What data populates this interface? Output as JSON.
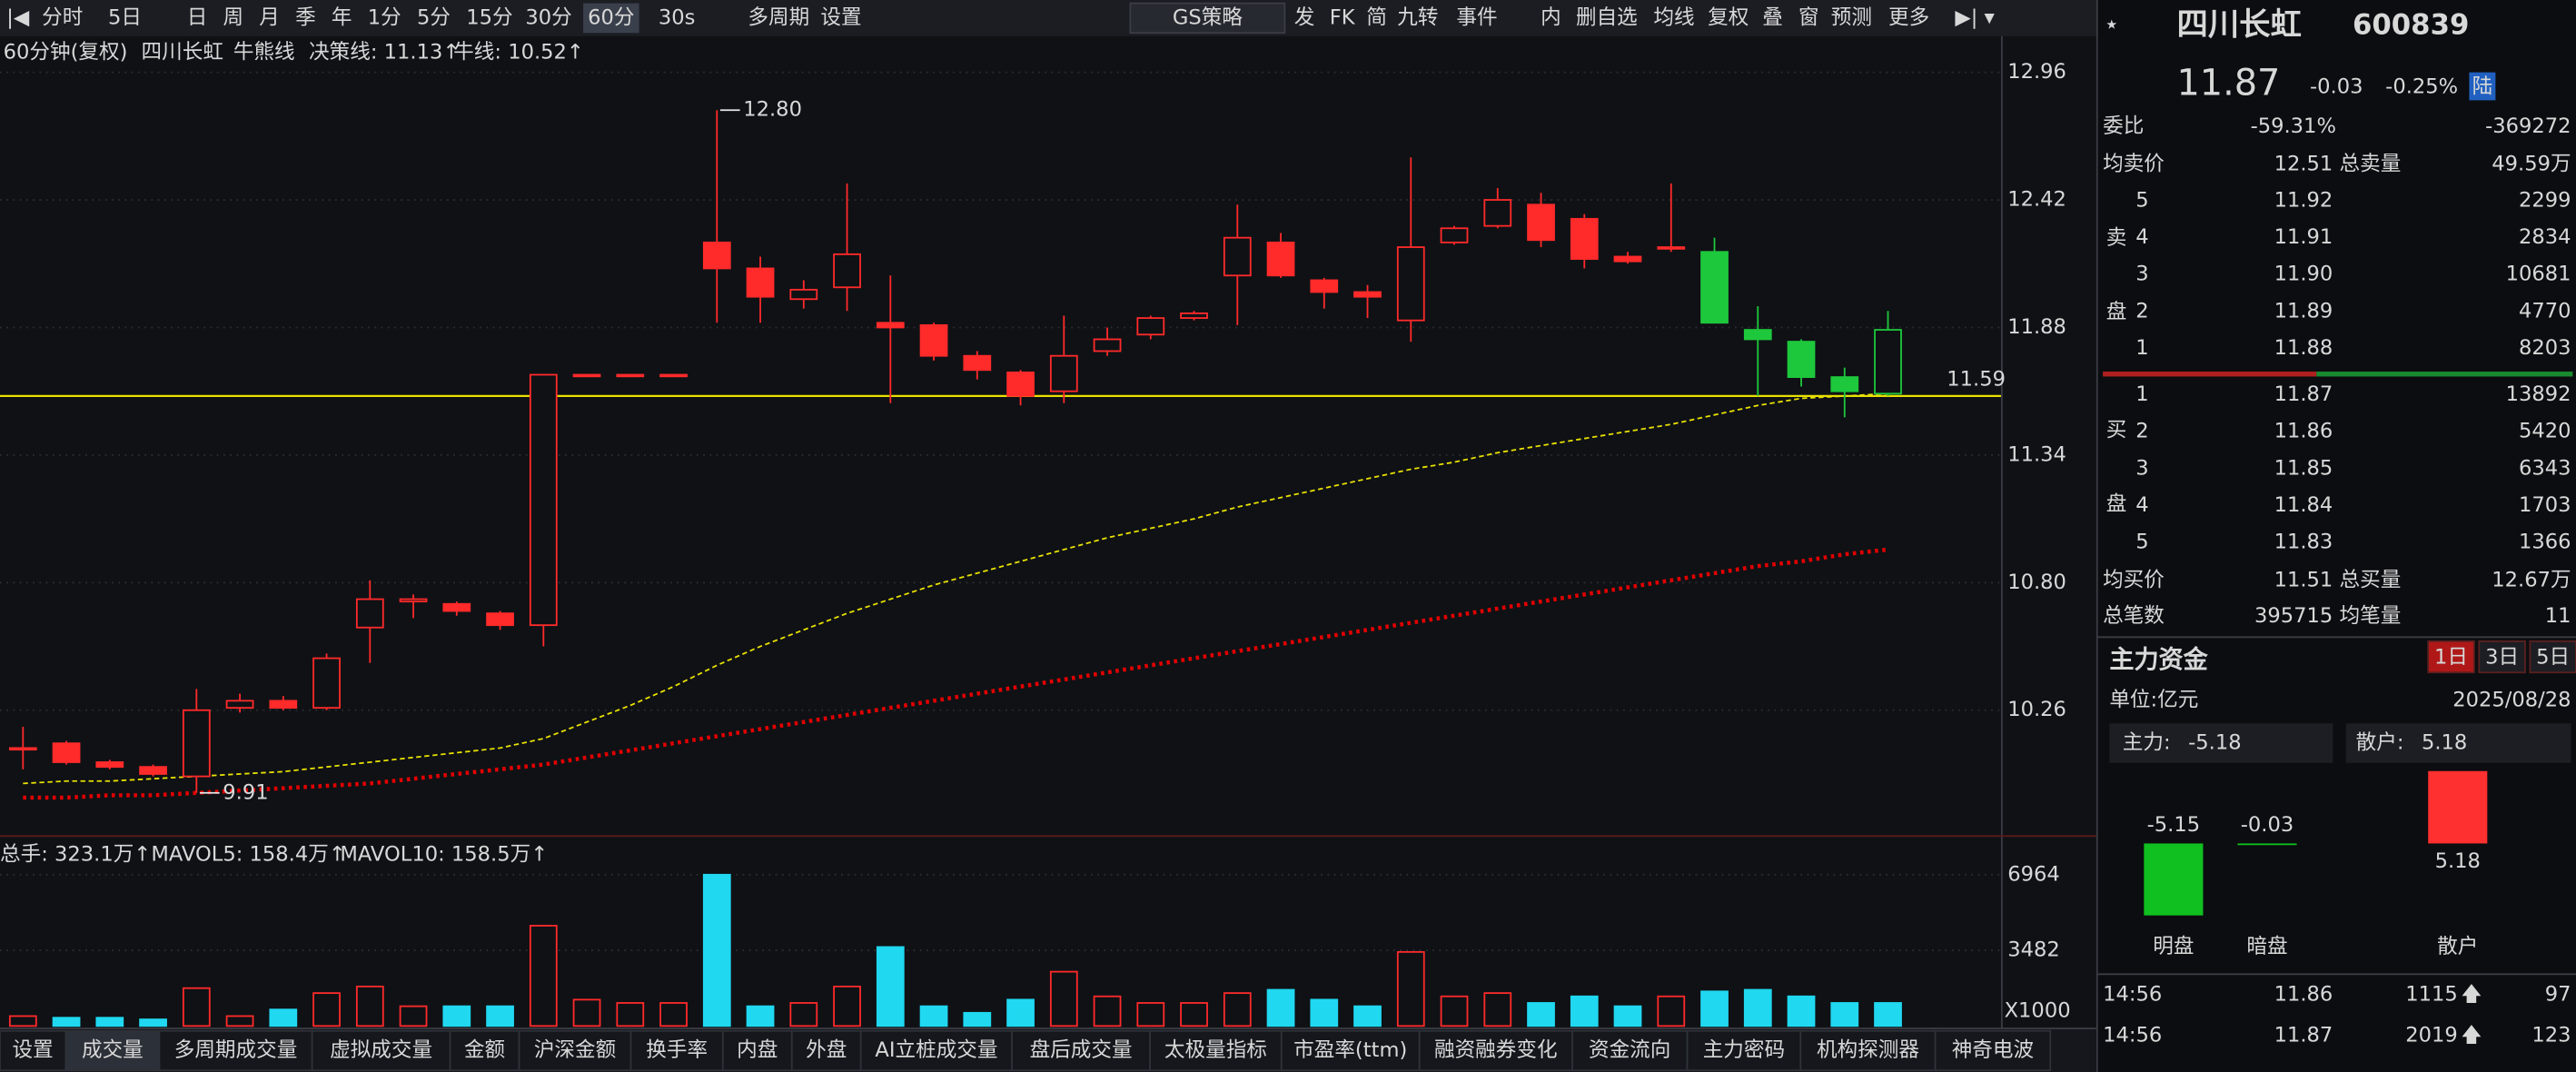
{
  "toolbar": {
    "periods": [
      "分时",
      "5日",
      "日",
      "周",
      "月",
      "季",
      "年",
      "1分",
      "5分",
      "15分",
      "30分",
      "60分",
      "30s",
      "多周期",
      "设置"
    ],
    "strategy": "GS策略",
    "tools": [
      "发",
      "FK",
      "简",
      "九转",
      "事件",
      "内",
      "删自选",
      "均线",
      "复权",
      "叠",
      "窗",
      "预测",
      "更多"
    ]
  },
  "chart": {
    "period": "60分钟(复权)",
    "name": "四川长虹",
    "indicator": "牛熊线",
    "decision": "决策线: 11.13↑",
    "bull": "牛线: 10.52↑",
    "ylim": [
      9.76,
      13.04
    ],
    "yticks": [
      12.96,
      12.42,
      11.88,
      11.34,
      {
        "value": 10.8,
        "label": "10.80"
      },
      10.26
    ],
    "open": [
      10.1,
      10.12,
      10.04,
      10.02,
      9.98,
      10.27,
      10.3,
      10.27,
      10.61,
      10.72,
      10.71,
      10.67,
      10.62,
      11.68,
      11.68,
      11.68,
      12.24,
      12.13,
      12.0,
      12.05,
      11.9,
      11.89,
      11.76,
      11.69,
      11.61,
      11.78,
      11.85,
      11.92,
      12.1,
      12.24,
      12.08,
      12.03,
      11.91,
      12.24,
      12.31,
      12.4,
      12.34,
      12.18,
      12.22,
      12.2,
      11.87,
      11.82,
      11.67,
      11.6
    ],
    "high": [
      10.19,
      10.13,
      10.05,
      10.03,
      10.35,
      10.33,
      10.32,
      10.5,
      10.81,
      10.75,
      10.72,
      10.68,
      11.68,
      11.68,
      11.68,
      11.68,
      12.8,
      12.18,
      12.08,
      12.49,
      12.1,
      11.9,
      11.78,
      11.7,
      11.93,
      11.88,
      11.93,
      11.95,
      12.4,
      12.28,
      12.09,
      12.06,
      12.6,
      12.31,
      12.47,
      12.45,
      12.36,
      12.2,
      12.49,
      12.26,
      11.97,
      11.83,
      11.71,
      11.95
    ],
    "low": [
      10.01,
      10.03,
      10.01,
      9.98,
      9.91,
      10.25,
      10.26,
      10.26,
      10.46,
      10.65,
      10.66,
      10.6,
      10.53,
      11.68,
      11.68,
      11.68,
      11.9,
      11.9,
      11.96,
      11.95,
      11.56,
      11.74,
      11.66,
      11.55,
      11.56,
      11.76,
      11.83,
      11.91,
      11.89,
      12.09,
      11.96,
      11.92,
      11.82,
      12.23,
      12.3,
      12.22,
      12.13,
      12.15,
      12.2,
      11.9,
      11.59,
      11.63,
      11.5,
      11.59
    ],
    "close": [
      10.1,
      10.04,
      10.02,
      9.99,
      10.26,
      10.3,
      10.27,
      10.48,
      10.73,
      10.73,
      10.68,
      10.62,
      11.68,
      11.68,
      11.68,
      11.68,
      12.13,
      12.01,
      12.04,
      12.19,
      11.88,
      11.76,
      11.7,
      11.59,
      11.76,
      11.83,
      11.92,
      11.94,
      12.26,
      12.1,
      12.03,
      12.01,
      12.22,
      12.3,
      12.42,
      12.25,
      12.17,
      12.16,
      12.22,
      11.9,
      11.83,
      11.67,
      11.61,
      11.87
    ],
    "colors": [
      "#ff2a2a",
      "#ff2a2a",
      "#ff2a2a",
      "#ff2a2a",
      "#ff2a2a",
      "#ff2a2a",
      "#ff2a2a",
      "#ff2a2a",
      "#ff2a2a",
      "#ff2a2a",
      "#ff2a2a",
      "#ff2a2a",
      "#ff2a2a",
      "#ff2a2a",
      "#ff2a2a",
      "#ff2a2a",
      "#ff2a2a",
      "#ff2a2a",
      "#ff2a2a",
      "#ff2a2a",
      "#ff2a2a",
      "#ff2a2a",
      "#ff2a2a",
      "#ff2a2a",
      "#ff2a2a",
      "#ff2a2a",
      "#ff2a2a",
      "#ff2a2a",
      "#ff2a2a",
      "#ff2a2a",
      "#ff2a2a",
      "#ff2a2a",
      "#ff2a2a",
      "#ff2a2a",
      "#ff2a2a",
      "#ff2a2a",
      "#ff2a2a",
      "#ff2a2a",
      "#ff2a2a",
      "#1ec83c",
      "#1ec83c",
      "#1ec83c",
      "#1ec83c",
      "#1ec83c"
    ],
    "lines": [
      {
        "color": "#e8e000",
        "style": "dashed",
        "values": [
          9.95,
          9.96,
          9.96,
          9.97,
          9.98,
          9.99,
          10.0,
          10.02,
          10.04,
          10.06,
          10.08,
          10.1,
          10.14,
          10.21,
          10.28,
          10.36,
          10.45,
          10.53,
          10.6,
          10.67,
          10.73,
          10.79,
          10.84,
          10.89,
          10.94,
          10.99,
          11.03,
          11.07,
          11.12,
          11.16,
          11.2,
          11.24,
          11.28,
          11.31,
          11.35,
          11.38,
          11.41,
          11.44,
          11.47,
          11.51,
          11.55,
          11.58,
          11.59,
          11.6
        ]
      },
      {
        "color": "#e00000",
        "style": "dotted",
        "values": [
          9.89,
          9.89,
          9.9,
          9.9,
          9.91,
          9.92,
          9.93,
          9.94,
          9.95,
          9.97,
          9.99,
          10.01,
          10.03,
          10.06,
          10.09,
          10.12,
          10.15,
          10.18,
          10.21,
          10.24,
          10.27,
          10.3,
          10.33,
          10.36,
          10.39,
          10.42,
          10.45,
          10.48,
          10.51,
          10.54,
          10.57,
          10.6,
          10.63,
          10.66,
          10.69,
          10.72,
          10.75,
          10.78,
          10.81,
          10.84,
          10.87,
          10.89,
          10.92,
          10.94
        ]
      }
    ],
    "hline": 11.59,
    "hline_color": "#e8e000",
    "high_mark": {
      "value": 12.8,
      "label": "12.80"
    },
    "low_mark": 9.91
  },
  "volume": {
    "total": "总手: 323.1万↑",
    "mavol5": "MAVOL5: 158.4万↑",
    "mavol10": "MAVOL10: 158.5万↑",
    "ylim": [
      0,
      7600
    ],
    "yticks": [
      6964,
      3482
    ],
    "unit": "X1000",
    "values": [
      454,
      379,
      379,
      303,
      1741,
      454,
      757,
      1514,
      1817,
      908,
      908,
      908,
      4617,
      1211,
      1060,
      1060,
      6964,
      908,
      1060,
      1817,
      3634,
      908,
      606,
      1211,
      2498,
      1363,
      1060,
      1060,
      1514,
      1665,
      1211,
      908,
      3407,
      1363,
      1514,
      1060,
      1363,
      908,
      1363,
      1590,
      1665,
      1363,
      1060,
      1060
    ]
  },
  "tabs": [
    "设置",
    "成交量",
    "多周期成交量",
    "虚拟成交量",
    "金额",
    "沪深金额",
    "换手率",
    "内盘",
    "外盘",
    "AI立桩成交量",
    "盘后成交量",
    "太极量指标",
    "市盈率(ttm)",
    "融资融券变化",
    "资金流向",
    "主力密码",
    "机构探测器",
    "神奇电波"
  ],
  "quote": {
    "name": "四川长虹",
    "code": "600839",
    "price": "11.87",
    "change": "-0.03",
    "pct": "-0.25%",
    "market": "陆",
    "ratio": {
      "label": "委比",
      "pct": "-59.31%",
      "diff": "-369272"
    },
    "avg_sell": {
      "label": "均卖价",
      "value": "12.51",
      "total_label": "总卖量",
      "total": "49.59万"
    },
    "sell_side": [
      "卖",
      "盘"
    ],
    "sell": [
      {
        "level": "5",
        "price": "11.92",
        "volume": "2299"
      },
      {
        "level": "4",
        "price": "11.91",
        "volume": "2834"
      },
      {
        "level": "3",
        "price": "11.90",
        "volume": "10681"
      },
      {
        "level": "2",
        "price": "11.89",
        "volume": "4770"
      },
      {
        "level": "1",
        "price": "11.88",
        "volume": "8203"
      }
    ],
    "buy_side": [
      "买",
      "盘"
    ],
    "buy": [
      {
        "level": "1",
        "price": "11.87",
        "volume": "13892"
      },
      {
        "level": "2",
        "price": "11.86",
        "volume": "5420"
      },
      {
        "level": "3",
        "price": "11.85",
        "volume": "6343"
      },
      {
        "level": "4",
        "price": "11.84",
        "volume": "1703"
      },
      {
        "level": "5",
        "price": "11.83",
        "volume": "1366"
      }
    ],
    "avg_buy": {
      "label": "均买价",
      "value": "11.51",
      "total_label": "总买量",
      "total": "12.67万"
    },
    "trades": {
      "label": "总笔数",
      "value": "395715",
      "avg_label": "均笔量",
      "avg": "11"
    }
  },
  "capital": {
    "title": "主力资金",
    "ranges": [
      "1日",
      "3日",
      "5日"
    ],
    "unit": "单位:亿元",
    "date": "2025/08/28",
    "main_label": "主力:",
    "main": "-5.18",
    "retail_label": "散户:",
    "retail": "5.18",
    "bars": [
      {
        "name": "明盘",
        "value": -5.15
      },
      {
        "name": "暗盘",
        "value": -0.03
      },
      {
        "name": "散户",
        "value": 5.18
      }
    ]
  },
  "ticks": [
    {
      "time": "14:56",
      "price": "11.86",
      "volume": "1115",
      "count": "97"
    },
    {
      "time": "14:56",
      "price": "11.87",
      "volume": "2019",
      "count": "123"
    }
  ]
}
